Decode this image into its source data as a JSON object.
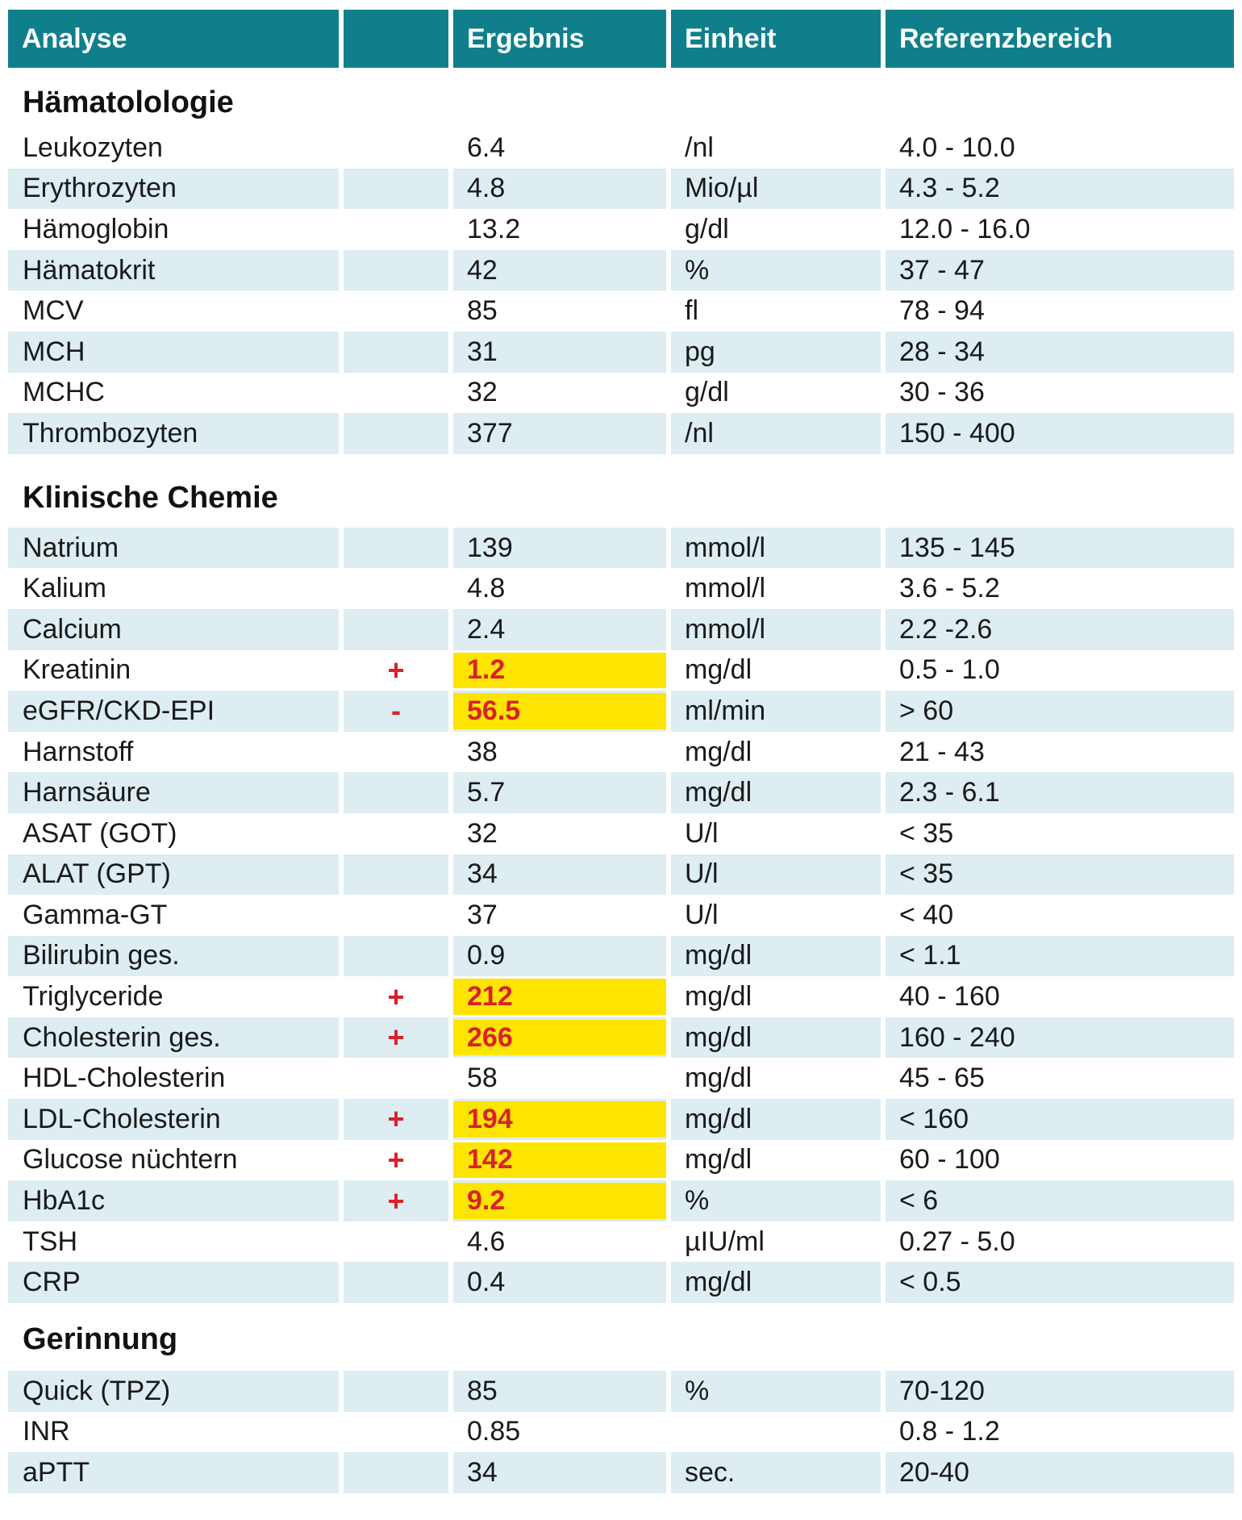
{
  "colors": {
    "header_teal": "#0f7f8c",
    "stripe_blue": "#ddedf1",
    "highlight_yellow": "#fde500",
    "abnormal_red": "#da2129",
    "text": "#1a1a1a"
  },
  "table_header": {
    "columns": [
      "Analyse",
      "",
      "Ergebnis",
      "Einheit",
      "Referenzbereich"
    ]
  },
  "sections": [
    {
      "title": "Hämatolologie",
      "rows": [
        {
          "analyse": "Leukozyten",
          "flag": "",
          "ergebnis": "6.4",
          "highlight": false,
          "einheit": "/nl",
          "referenz": "4.0 - 10.0"
        },
        {
          "analyse": "Erythrozyten",
          "flag": "",
          "ergebnis": "4.8",
          "highlight": false,
          "einheit": "Mio/µl",
          "referenz": "4.3 - 5.2"
        },
        {
          "analyse": "Hämoglobin",
          "flag": "",
          "ergebnis": "13.2",
          "highlight": false,
          "einheit": "g/dl",
          "referenz": "12.0 - 16.0"
        },
        {
          "analyse": "Hämatokrit",
          "flag": "",
          "ergebnis": "42",
          "highlight": false,
          "einheit": "%",
          "referenz": "37 - 47"
        },
        {
          "analyse": "MCV",
          "flag": "",
          "ergebnis": "85",
          "highlight": false,
          "einheit": "fl",
          "referenz": "78 - 94"
        },
        {
          "analyse": "MCH",
          "flag": "",
          "ergebnis": "31",
          "highlight": false,
          "einheit": "pg",
          "referenz": "28 - 34"
        },
        {
          "analyse": "MCHC",
          "flag": "",
          "ergebnis": "32",
          "highlight": false,
          "einheit": "g/dl",
          "referenz": "30 - 36"
        },
        {
          "analyse": "Thrombozyten",
          "flag": "",
          "ergebnis": "377",
          "highlight": false,
          "einheit": "/nl",
          "referenz": "150 - 400"
        }
      ]
    },
    {
      "title": "Klinische Chemie",
      "rows": [
        {
          "analyse": "Natrium",
          "flag": "",
          "ergebnis": "139",
          "highlight": false,
          "einheit": "mmol/l",
          "referenz": "135 - 145"
        },
        {
          "analyse": "Kalium",
          "flag": "",
          "ergebnis": "4.8",
          "highlight": false,
          "einheit": "mmol/l",
          "referenz": "3.6 - 5.2"
        },
        {
          "analyse": "Calcium",
          "flag": "",
          "ergebnis": "2.4",
          "highlight": false,
          "einheit": "mmol/l",
          "referenz": "2.2 -2.6"
        },
        {
          "analyse": "Kreatinin",
          "flag": "+",
          "ergebnis": "1.2",
          "highlight": true,
          "einheit": "mg/dl",
          "referenz": "0.5 - 1.0"
        },
        {
          "analyse": "eGFR/CKD-EPI",
          "flag": "-",
          "ergebnis": "56.5",
          "highlight": true,
          "einheit": "ml/min",
          "referenz": "> 60"
        },
        {
          "analyse": "Harnstoff",
          "flag": "",
          "ergebnis": "38",
          "highlight": false,
          "einheit": "mg/dl",
          "referenz": "21 - 43"
        },
        {
          "analyse": "Harnsäure",
          "flag": "",
          "ergebnis": "5.7",
          "highlight": false,
          "einheit": "mg/dl",
          "referenz": "2.3 - 6.1"
        },
        {
          "analyse": "ASAT (GOT)",
          "flag": "",
          "ergebnis": "32",
          "highlight": false,
          "einheit": "U/l",
          "referenz": "< 35"
        },
        {
          "analyse": "ALAT (GPT)",
          "flag": "",
          "ergebnis": "34",
          "highlight": false,
          "einheit": "U/l",
          "referenz": "< 35"
        },
        {
          "analyse": "Gamma-GT",
          "flag": "",
          "ergebnis": "37",
          "highlight": false,
          "einheit": "U/l",
          "referenz": "< 40"
        },
        {
          "analyse": "Bilirubin ges.",
          "flag": "",
          "ergebnis": "0.9",
          "highlight": false,
          "einheit": "mg/dl",
          "referenz": "< 1.1"
        },
        {
          "analyse": "Triglyceride",
          "flag": "+",
          "ergebnis": "212",
          "highlight": true,
          "einheit": "mg/dl",
          "referenz": "40 - 160"
        },
        {
          "analyse": "Cholesterin ges.",
          "flag": "+",
          "ergebnis": "266",
          "highlight": true,
          "einheit": "mg/dl",
          "referenz": "160 - 240"
        },
        {
          "analyse": "HDL-Cholesterin",
          "flag": "",
          "ergebnis": "58",
          "highlight": false,
          "einheit": "mg/dl",
          "referenz": "45 - 65"
        },
        {
          "analyse": "LDL-Cholesterin",
          "flag": "+",
          "ergebnis": "194",
          "highlight": true,
          "einheit": "mg/dl",
          "referenz": "< 160"
        },
        {
          "analyse": "Glucose nüchtern",
          "flag": "+",
          "ergebnis": "142",
          "highlight": true,
          "einheit": "mg/dl",
          "referenz": "60 - 100"
        },
        {
          "analyse": "HbA1c",
          "flag": "+",
          "ergebnis": "9.2",
          "highlight": true,
          "einheit": "%",
          "referenz": "< 6"
        },
        {
          "analyse": "TSH",
          "flag": "",
          "ergebnis": "4.6",
          "highlight": false,
          "einheit": "µIU/ml",
          "referenz": "0.27 - 5.0"
        },
        {
          "analyse": "CRP",
          "flag": "",
          "ergebnis": "0.4",
          "highlight": false,
          "einheit": "mg/dl",
          "referenz": "< 0.5"
        }
      ]
    },
    {
      "title": "Gerinnung",
      "rows": [
        {
          "analyse": "Quick (TPZ)",
          "flag": "",
          "ergebnis": "85",
          "highlight": false,
          "einheit": "%",
          "referenz": "70-120"
        },
        {
          "analyse": "INR",
          "flag": "",
          "ergebnis": "0.85",
          "highlight": false,
          "einheit": "",
          "referenz": "0.8 - 1.2"
        },
        {
          "analyse": "aPTT",
          "flag": "",
          "ergebnis": "34",
          "highlight": false,
          "einheit": "sec.",
          "referenz": "20-40"
        }
      ]
    }
  ]
}
